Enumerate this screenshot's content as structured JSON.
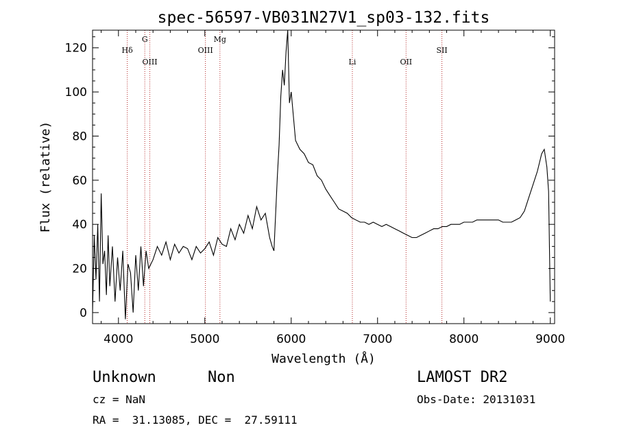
{
  "chart_data": {
    "type": "line",
    "title": "spec-56597-VB031N27V1_sp03-132.fits",
    "xlabel": "Wavelength (Å)",
    "ylabel": "Flux (relative)",
    "xlim": [
      3700,
      9050
    ],
    "ylim": [
      -5,
      128
    ],
    "x_ticks": [
      4000,
      5000,
      6000,
      7000,
      8000,
      9000
    ],
    "y_ticks": [
      0,
      20,
      40,
      60,
      80,
      100,
      120
    ],
    "grid": false,
    "line_color": "#000000",
    "marker_line_color": "#b22222",
    "series": [
      {
        "x": [
          3700,
          3720,
          3740,
          3760,
          3780,
          3800,
          3820,
          3840,
          3860,
          3880,
          3900,
          3930,
          3960,
          3990,
          4020,
          4050,
          4080,
          4110,
          4140,
          4170,
          4200,
          4230,
          4260,
          4290,
          4320,
          4350,
          4400,
          4450,
          4500,
          4550,
          4600,
          4650,
          4700,
          4750,
          4800,
          4850,
          4900,
          4950,
          5000,
          5050,
          5100,
          5150,
          5200,
          5250,
          5300,
          5350,
          5400,
          5450,
          5500,
          5550,
          5600,
          5650,
          5700,
          5750,
          5780,
          5800,
          5820,
          5840,
          5860,
          5880,
          5900,
          5920,
          5940,
          5960,
          5980,
          6000,
          6050,
          6100,
          6150,
          6200,
          6250,
          6300,
          6350,
          6400,
          6450,
          6500,
          6550,
          6600,
          6650,
          6700,
          6750,
          6800,
          6850,
          6900,
          6950,
          7000,
          7050,
          7100,
          7150,
          7200,
          7250,
          7300,
          7350,
          7400,
          7450,
          7500,
          7550,
          7600,
          7650,
          7700,
          7750,
          7800,
          7850,
          7900,
          7950,
          8000,
          8050,
          8100,
          8150,
          8200,
          8250,
          8300,
          8350,
          8400,
          8450,
          8500,
          8550,
          8600,
          8650,
          8700,
          8750,
          8800,
          8850,
          8900,
          8930,
          8960,
          8980,
          9000
        ],
        "y": [
          0,
          35,
          15,
          40,
          5,
          54,
          22,
          28,
          8,
          35,
          12,
          30,
          5,
          25,
          10,
          28,
          -3,
          22,
          18,
          0,
          26,
          10,
          30,
          12,
          28,
          20,
          24,
          30,
          26,
          32,
          24,
          31,
          27,
          30,
          29,
          24,
          30,
          27,
          29,
          32,
          26,
          34,
          31,
          30,
          38,
          33,
          40,
          36,
          44,
          38,
          48,
          42,
          45,
          34,
          30,
          28,
          45,
          62,
          76,
          98,
          110,
          103,
          118,
          128,
          95,
          100,
          78,
          74,
          72,
          68,
          67,
          62,
          60,
          56,
          53,
          50,
          47,
          46,
          45,
          43,
          42,
          41,
          41,
          40,
          41,
          40,
          39,
          40,
          39,
          38,
          37,
          36,
          35,
          34,
          34,
          35,
          36,
          37,
          38,
          38,
          39,
          39,
          40,
          40,
          40,
          41,
          41,
          41,
          42,
          42,
          42,
          42,
          42,
          42,
          41,
          41,
          41,
          42,
          43,
          46,
          52,
          58,
          64,
          72,
          74,
          66,
          55,
          5
        ]
      }
    ],
    "lines": [
      {
        "label": "Hδ",
        "x": 4102,
        "row": 1
      },
      {
        "label": "G",
        "x": 4305,
        "row": 0
      },
      {
        "label": "OIII",
        "x": 4363,
        "row": 2
      },
      {
        "label": "OIII",
        "x": 5007,
        "row": 1
      },
      {
        "label": "Mg",
        "x": 5175,
        "row": 0
      },
      {
        "label": "Li",
        "x": 6708,
        "row": 2
      },
      {
        "label": "OII",
        "x": 7330,
        "row": 2
      },
      {
        "label": "SII",
        "x": 7745,
        "row": 1
      }
    ]
  },
  "info": {
    "class": "Unknown",
    "subclass": "Non",
    "survey": "LAMOST DR2",
    "cz": "cz = NaN",
    "obs_date": "Obs-Date: 20131031",
    "coords": "RA =  31.13085, DEC =  27.59111"
  }
}
